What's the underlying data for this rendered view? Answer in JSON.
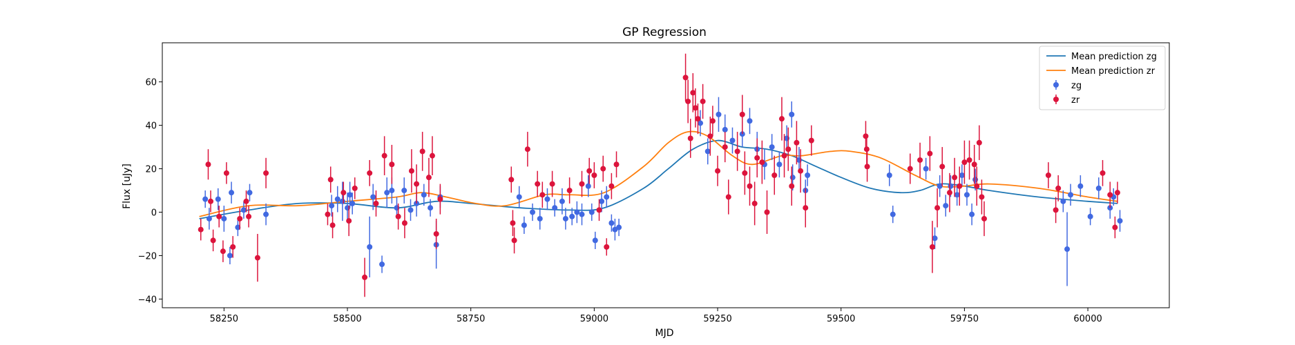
{
  "chart_data": {
    "type": "scatter",
    "title": "GP Regression",
    "xlabel": "MJD",
    "ylabel": "Flux [uJy]",
    "xlim": [
      58125,
      60165
    ],
    "ylim": [
      -44,
      78
    ],
    "xticks": [
      58250,
      58500,
      58750,
      59000,
      59250,
      59500,
      59750,
      60000
    ],
    "yticks": [
      -40,
      -20,
      0,
      20,
      40,
      60
    ],
    "legend_position": "upper right",
    "colors": {
      "zg_line": "#1f77b4",
      "zr_line": "#ff7f0e",
      "zg_points": "#4169e1",
      "zr_points": "#dc143c"
    },
    "series": [
      {
        "name": "Mean prediction zg",
        "kind": "line",
        "x": [
          58200,
          58300,
          58400,
          58500,
          58600,
          58680,
          58750,
          58850,
          58950,
          59020,
          59100,
          59150,
          59200,
          59250,
          59300,
          59350,
          59400,
          59450,
          59500,
          59560,
          59620,
          59660,
          59700,
          59750,
          59800,
          59900,
          60000,
          60060
        ],
        "y": [
          -3,
          1,
          4,
          4,
          2,
          5,
          4,
          2,
          1,
          2,
          11,
          20,
          29,
          33,
          30,
          29,
          26,
          21,
          16,
          11,
          9,
          10,
          13,
          12,
          10,
          7,
          5,
          4
        ]
      },
      {
        "name": "Mean prediction zr",
        "kind": "line",
        "x": [
          58200,
          58300,
          58400,
          58500,
          58600,
          58650,
          58700,
          58760,
          58820,
          58900,
          58950,
          59020,
          59100,
          59150,
          59190,
          59230,
          59280,
          59320,
          59380,
          59420,
          59480,
          59520,
          59580,
          59650,
          59700,
          59750,
          59800,
          59900,
          60000,
          60060
        ],
        "y": [
          -2,
          3,
          3,
          5,
          7,
          9,
          7,
          4,
          3,
          8,
          8,
          9,
          21,
          32,
          37,
          35,
          26,
          22,
          26,
          26,
          28,
          28,
          25,
          17,
          12,
          12,
          13,
          11,
          7,
          5
        ]
      },
      {
        "name": "zg",
        "kind": "errorbar",
        "points": [
          [
            58212,
            6,
            4
          ],
          [
            58220,
            -3,
            5
          ],
          [
            58238,
            6,
            5
          ],
          [
            58250,
            -3,
            6
          ],
          [
            58262,
            -20,
            4
          ],
          [
            58265,
            9,
            5
          ],
          [
            58278,
            -7,
            4
          ],
          [
            58290,
            1,
            4
          ],
          [
            58302,
            9,
            4
          ],
          [
            58335,
            -1,
            5
          ],
          [
            58468,
            3,
            5
          ],
          [
            58480,
            6,
            6
          ],
          [
            58490,
            5,
            9
          ],
          [
            58500,
            2,
            7
          ],
          [
            58505,
            8,
            6
          ],
          [
            58510,
            4,
            5
          ],
          [
            58545,
            -16,
            14
          ],
          [
            58552,
            7,
            6
          ],
          [
            58570,
            -24,
            4
          ],
          [
            58580,
            9,
            7
          ],
          [
            58590,
            10,
            6
          ],
          [
            58600,
            2,
            5
          ],
          [
            58615,
            10,
            6
          ],
          [
            58628,
            1,
            5
          ],
          [
            58640,
            4,
            6
          ],
          [
            58655,
            8,
            5
          ],
          [
            58668,
            2,
            4
          ],
          [
            58680,
            -15,
            11
          ],
          [
            58688,
            7,
            5
          ],
          [
            58848,
            7,
            5
          ],
          [
            58858,
            -6,
            4
          ],
          [
            58875,
            0,
            4
          ],
          [
            58890,
            -3,
            5
          ],
          [
            58905,
            6,
            5
          ],
          [
            58920,
            2,
            4
          ],
          [
            58935,
            5,
            6
          ],
          [
            58942,
            -3,
            5
          ],
          [
            58955,
            -2,
            4
          ],
          [
            58965,
            0,
            5
          ],
          [
            58975,
            -1,
            5
          ],
          [
            58988,
            12,
            5
          ],
          [
            58995,
            0,
            4
          ],
          [
            59002,
            -13,
            4
          ],
          [
            59015,
            5,
            5
          ],
          [
            59025,
            7,
            5
          ],
          [
            59035,
            -5,
            4
          ],
          [
            59042,
            -8,
            5
          ],
          [
            59050,
            -7,
            4
          ],
          [
            59215,
            41,
            6
          ],
          [
            59230,
            28,
            6
          ],
          [
            59252,
            45,
            8
          ],
          [
            59265,
            38,
            7
          ],
          [
            59280,
            33,
            6
          ],
          [
            59300,
            36,
            6
          ],
          [
            59315,
            42,
            6
          ],
          [
            59330,
            29,
            8
          ],
          [
            59345,
            22,
            7
          ],
          [
            59360,
            30,
            6
          ],
          [
            59375,
            22,
            6
          ],
          [
            59390,
            34,
            6
          ],
          [
            59400,
            45,
            6
          ],
          [
            59402,
            16,
            6
          ],
          [
            59415,
            24,
            6
          ],
          [
            59428,
            10,
            5
          ],
          [
            59432,
            17,
            5
          ],
          [
            59598,
            17,
            5
          ],
          [
            59605,
            -1,
            4
          ],
          [
            59672,
            20,
            5
          ],
          [
            59690,
            -12,
            5
          ],
          [
            59700,
            12,
            5
          ],
          [
            59712,
            3,
            5
          ],
          [
            59722,
            12,
            5
          ],
          [
            59735,
            8,
            5
          ],
          [
            59745,
            17,
            5
          ],
          [
            59755,
            8,
            5
          ],
          [
            59765,
            -1,
            5
          ],
          [
            59772,
            15,
            5
          ],
          [
            59950,
            5,
            5
          ],
          [
            59958,
            -17,
            17
          ],
          [
            59965,
            8,
            5
          ],
          [
            59985,
            12,
            5
          ],
          [
            60005,
            -2,
            4
          ],
          [
            60022,
            11,
            5
          ],
          [
            60045,
            2,
            5
          ],
          [
            60052,
            7,
            4
          ],
          [
            60065,
            -4,
            5
          ]
        ]
      },
      {
        "name": "zr",
        "kind": "errorbar",
        "points": [
          [
            58203,
            -8,
            5
          ],
          [
            58218,
            22,
            7
          ],
          [
            58223,
            5,
            5
          ],
          [
            58228,
            -13,
            5
          ],
          [
            58240,
            -2,
            5
          ],
          [
            58248,
            -18,
            5
          ],
          [
            58255,
            18,
            5
          ],
          [
            58268,
            -16,
            5
          ],
          [
            58282,
            -3,
            5
          ],
          [
            58295,
            5,
            5
          ],
          [
            58300,
            -2,
            5
          ],
          [
            58318,
            -21,
            11
          ],
          [
            58335,
            18,
            7
          ],
          [
            58460,
            -1,
            5
          ],
          [
            58466,
            15,
            6
          ],
          [
            58470,
            -6,
            6
          ],
          [
            58492,
            9,
            5
          ],
          [
            58503,
            -4,
            7
          ],
          [
            58515,
            11,
            5
          ],
          [
            58535,
            -30,
            9
          ],
          [
            58545,
            18,
            6
          ],
          [
            58558,
            4,
            6
          ],
          [
            58575,
            26,
            9
          ],
          [
            58590,
            22,
            9
          ],
          [
            58603,
            -2,
            6
          ],
          [
            58616,
            -5,
            7
          ],
          [
            58630,
            19,
            10
          ],
          [
            58640,
            13,
            9
          ],
          [
            58652,
            28,
            9
          ],
          [
            58665,
            16,
            9
          ],
          [
            58672,
            26,
            9
          ],
          [
            58680,
            -10,
            7
          ],
          [
            58688,
            6,
            7
          ],
          [
            58832,
            15,
            6
          ],
          [
            58835,
            -5,
            6
          ],
          [
            58838,
            -13,
            6
          ],
          [
            58865,
            29,
            8
          ],
          [
            58885,
            13,
            6
          ],
          [
            58895,
            8,
            6
          ],
          [
            58915,
            13,
            6
          ],
          [
            58950,
            10,
            6
          ],
          [
            58975,
            13,
            6
          ],
          [
            58990,
            19,
            6
          ],
          [
            59000,
            17,
            6
          ],
          [
            59010,
            1,
            5
          ],
          [
            59018,
            20,
            6
          ],
          [
            59025,
            -16,
            4
          ],
          [
            59035,
            12,
            6
          ],
          [
            59045,
            22,
            6
          ],
          [
            59185,
            62,
            11
          ],
          [
            59190,
            51,
            10
          ],
          [
            59195,
            34,
            9
          ],
          [
            59200,
            55,
            9
          ],
          [
            59205,
            48,
            9
          ],
          [
            59210,
            43,
            7
          ],
          [
            59220,
            51,
            8
          ],
          [
            59235,
            35,
            9
          ],
          [
            59240,
            42,
            7
          ],
          [
            59250,
            19,
            7
          ],
          [
            59265,
            30,
            7
          ],
          [
            59272,
            7,
            8
          ],
          [
            59290,
            28,
            9
          ],
          [
            59300,
            45,
            9
          ],
          [
            59305,
            18,
            10
          ],
          [
            59315,
            12,
            9
          ],
          [
            59325,
            4,
            10
          ],
          [
            59330,
            25,
            9
          ],
          [
            59340,
            23,
            10
          ],
          [
            59350,
            0,
            10
          ],
          [
            59365,
            17,
            9
          ],
          [
            59380,
            43,
            10
          ],
          [
            59385,
            26,
            10
          ],
          [
            59393,
            29,
            10
          ],
          [
            59400,
            12,
            9
          ],
          [
            59410,
            32,
            10
          ],
          [
            59418,
            19,
            10
          ],
          [
            59428,
            2,
            9
          ],
          [
            59440,
            33,
            7
          ],
          [
            59550,
            35,
            7
          ],
          [
            59552,
            29,
            7
          ],
          [
            59553,
            21,
            7
          ],
          [
            59640,
            20,
            7
          ],
          [
            59660,
            24,
            8
          ],
          [
            59680,
            27,
            8
          ],
          [
            59685,
            -16,
            12
          ],
          [
            59695,
            2,
            9
          ],
          [
            59705,
            21,
            9
          ],
          [
            59720,
            9,
            9
          ],
          [
            59730,
            16,
            9
          ],
          [
            59740,
            12,
            9
          ],
          [
            59750,
            23,
            10
          ],
          [
            59760,
            24,
            9
          ],
          [
            59770,
            22,
            9
          ],
          [
            59775,
            12,
            9
          ],
          [
            59780,
            32,
            8
          ],
          [
            59785,
            7,
            8
          ],
          [
            59790,
            -3,
            8
          ],
          [
            59920,
            17,
            6
          ],
          [
            59935,
            1,
            6
          ],
          [
            59940,
            11,
            6
          ],
          [
            60030,
            18,
            6
          ],
          [
            60045,
            8,
            6
          ],
          [
            60055,
            -7,
            5
          ],
          [
            60060,
            9,
            5
          ]
        ]
      }
    ]
  }
}
